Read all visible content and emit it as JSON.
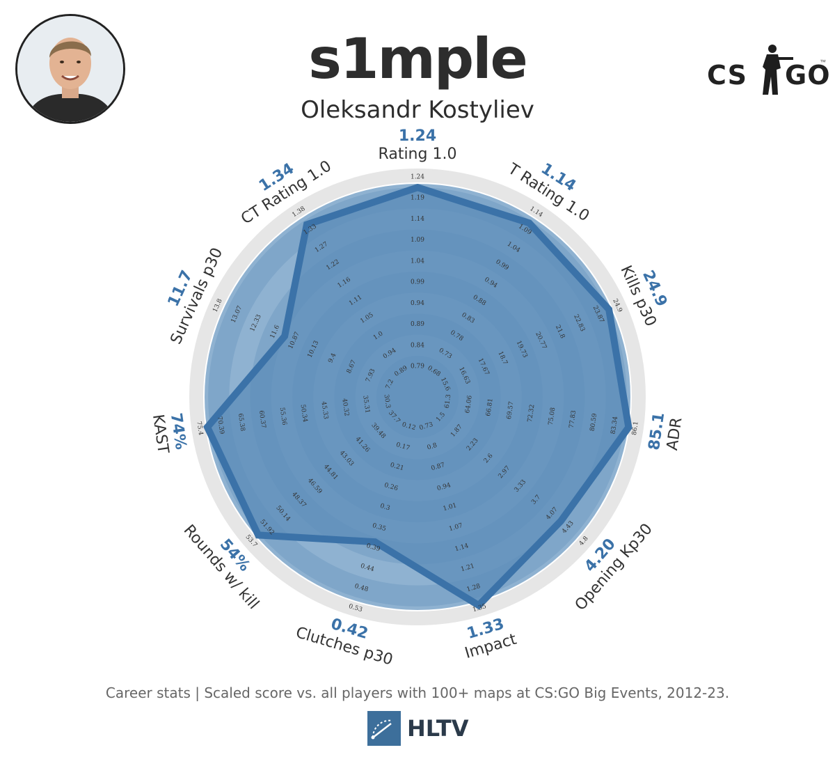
{
  "header": {
    "nickname": "s1mple",
    "real_name": "Oleksandr Kostyliev",
    "game_logo_left": "CS",
    "game_logo_right": "GO",
    "trademark": "™"
  },
  "icons": {
    "avatar": "player-photo-icon",
    "game_logo": "csgo-logo-icon",
    "brand_logo": "hltv-logo-icon"
  },
  "colors": {
    "accent": "#3b72a8",
    "fill": "#5f8fba",
    "ring_light": "#8fb2d1",
    "ring_dark": "#7fa6c9",
    "outer_track": "#e6e6e6"
  },
  "chart_data": {
    "type": "radar",
    "axes": [
      {
        "label": "Rating 1.0",
        "value": "1.24",
        "score": 0.944,
        "ticks": [
          "0.79",
          "0.84",
          "0.89",
          "0.94",
          "0.99",
          "1.04",
          "1.09",
          "1.14",
          "1.19",
          "1.24"
        ]
      },
      {
        "label": "T Rating 1.0",
        "value": "1.14",
        "score": 0.93,
        "ticks": [
          "0.68",
          "0.73",
          "0.78",
          "0.83",
          "0.88",
          "0.94",
          "0.99",
          "1.04",
          "1.09",
          "1.14"
        ]
      },
      {
        "label": "Kills p30",
        "value": "24.9",
        "score": 0.95,
        "ticks": [
          "15.6",
          "16.63",
          "17.67",
          "18.7",
          "19.73",
          "20.77",
          "21.8",
          "22.83",
          "23.87",
          "24.9"
        ]
      },
      {
        "label": "ADR",
        "value": "85.1",
        "score": 0.965,
        "ticks": [
          "61.3",
          "64.06",
          "66.81",
          "69.57",
          "72.32",
          "75.08",
          "77.83",
          "80.59",
          "83.34",
          "86.1"
        ]
      },
      {
        "label": "Opening Kp30",
        "value": "4.20",
        "score": 0.84,
        "ticks": [
          "1.5",
          "1.87",
          "2.23",
          "2.6",
          "2.97",
          "3.33",
          "3.7",
          "4.07",
          "4.43",
          "4.8"
        ]
      },
      {
        "label": "Impact",
        "value": "1.33",
        "score": 0.985,
        "ticks": [
          "0.73",
          "0.8",
          "0.87",
          "0.94",
          "1.01",
          "1.07",
          "1.14",
          "1.21",
          "1.28",
          "1.35"
        ]
      },
      {
        "label": "Clutches p30",
        "value": "0.42",
        "score": 0.636,
        "ticks": [
          "0.12",
          "0.17",
          "0.21",
          "0.26",
          "0.3",
          "0.35",
          "0.39",
          "0.44",
          "0.48",
          "0.53"
        ]
      },
      {
        "label": "Rounds w/ kill",
        "value": "54%",
        "score": 0.952,
        "ticks": [
          "37.7",
          "39.48",
          "41.26",
          "43.03",
          "44.81",
          "46.59",
          "48.37",
          "50.14",
          "51.92",
          "53.7"
        ]
      },
      {
        "label": "KAST",
        "value": "74%",
        "score": 0.96,
        "ticks": [
          "30.3",
          "35.31",
          "40.32",
          "45.33",
          "50.34",
          "55.36",
          "60.37",
          "65.38",
          "70.39",
          "75.4"
        ]
      },
      {
        "label": "Survivals p30",
        "value": "11.7",
        "score": 0.61,
        "ticks": [
          "7.2",
          "7.93",
          "8.67",
          "9.4",
          "10.13",
          "10.87",
          "11.6",
          "12.33",
          "13.07",
          "13.8"
        ]
      },
      {
        "label": "CT Rating 1.0",
        "value": "1.34",
        "score": 0.92,
        "ticks": [
          "0.89",
          "0.94",
          "1.0",
          "1.05",
          "1.11",
          "1.16",
          "1.22",
          "1.27",
          "1.33",
          "1.38"
        ]
      }
    ]
  },
  "footer": {
    "caption": "Career stats | Scaled score vs. all players with 100+ maps at CS:GO Big Events, 2012-23.",
    "brand": "HLTV"
  }
}
